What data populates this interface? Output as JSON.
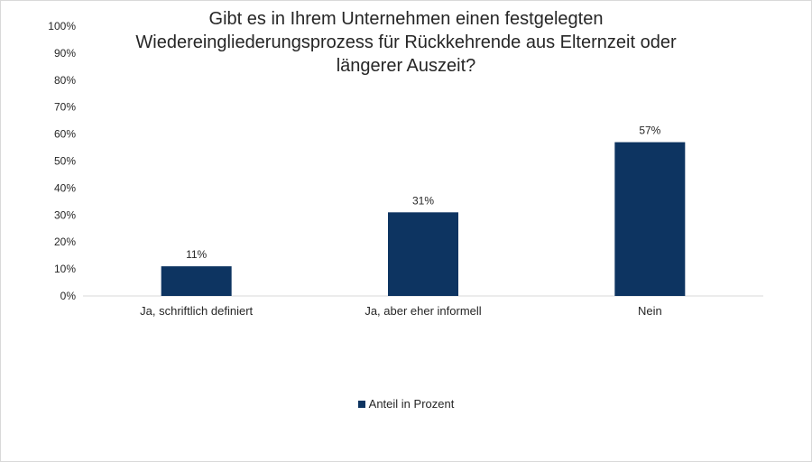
{
  "chart_data": {
    "type": "bar",
    "title_lines": [
      "Gibt es in Ihrem Unternehmen einen festgelegten",
      "Wiedereingliederungsprozess für Rückkehrende aus Elternzeit oder",
      "längerer Auszeit?"
    ],
    "categories": [
      "Ja, schriftlich definiert",
      "Ja, aber eher informell",
      "Nein"
    ],
    "series": [
      {
        "name": "Anteil in Prozent",
        "values": [
          11,
          31,
          57
        ],
        "color": "#0d3461"
      }
    ],
    "data_labels": [
      "11%",
      "31%",
      "57%"
    ],
    "y_ticks": [
      0,
      10,
      20,
      30,
      40,
      50,
      60,
      70,
      80,
      90,
      100
    ],
    "y_tick_labels": [
      "0%",
      "10%",
      "20%",
      "30%",
      "40%",
      "50%",
      "60%",
      "70%",
      "80%",
      "90%",
      "100%"
    ],
    "ylim": [
      0,
      100
    ],
    "xlabel": "",
    "ylabel": "",
    "grid": false,
    "legend_position": "bottom"
  }
}
